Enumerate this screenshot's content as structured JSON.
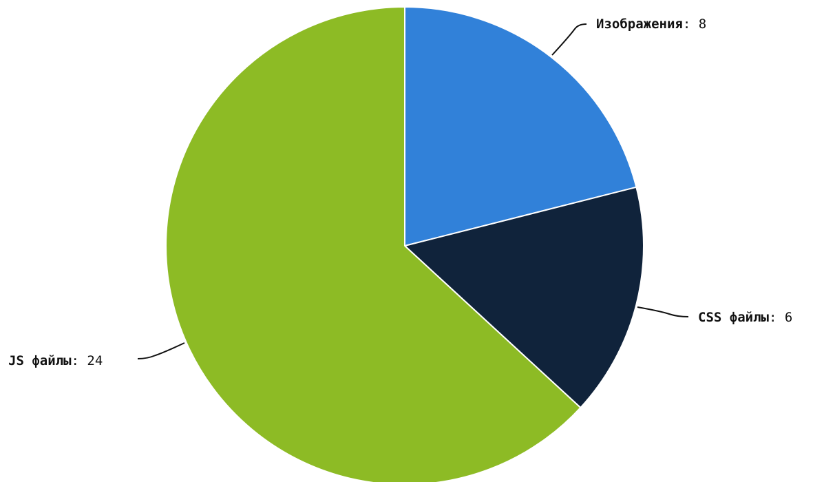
{
  "chart_data": {
    "type": "pie",
    "title": "",
    "slices": [
      {
        "label": "Изображения",
        "value": 8,
        "value_text": "8",
        "color": "#3181d9"
      },
      {
        "label": "CSS файлы",
        "value": 6,
        "value_text": "6",
        "color": "#10233b"
      },
      {
        "label": "JS файлы",
        "value": 24,
        "value_text": "24",
        "color": "#8dbb25"
      }
    ],
    "start_angle": "12 o'clock",
    "direction": "clockwise",
    "legend": "none"
  }
}
